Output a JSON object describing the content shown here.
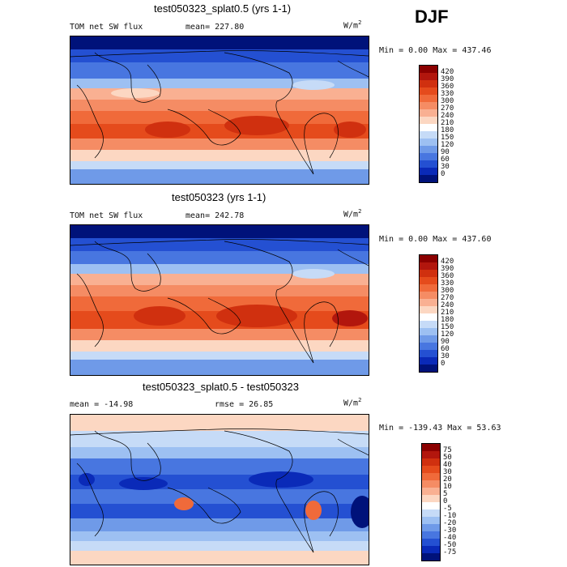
{
  "season": "DJF",
  "units_base": "W/m",
  "units_exp": "2",
  "panels": [
    {
      "title": "test050323_splat0.5 (yrs 1-1)",
      "left_text": "TOM net SW flux",
      "stat_text": "mean= 227.80",
      "minmax_text": "Min =    0.00 Max = 437.46",
      "scheme": "abs"
    },
    {
      "title": "test050323 (yrs 1-1)",
      "left_text": "TOM net SW flux",
      "stat_text": "mean= 242.78",
      "minmax_text": "Min =    0.00 Max = 437.60",
      "scheme": "abs"
    },
    {
      "title": "test050323_splat0.5 - test050323",
      "left_text": "mean = -14.98",
      "stat_text": "rmse =  26.85",
      "minmax_text": "Min = -139.43 Max =  53.63",
      "scheme": "diff"
    }
  ],
  "colorbars": {
    "abs": {
      "labels": [
        "420",
        "390",
        "360",
        "330",
        "300",
        "270",
        "240",
        "210",
        "180",
        "150",
        "120",
        "90",
        "60",
        "30",
        "0"
      ],
      "colors": [
        "#8b0000",
        "#b2160d",
        "#d0300f",
        "#e54b1c",
        "#f06a3a",
        "#f58c64",
        "#f9b092",
        "#fcd7c2",
        "#ffffff",
        "#c6dbf7",
        "#9dc0f2",
        "#6f9ae8",
        "#4876e0",
        "#2450d2",
        "#0a2ab8",
        "#00127a"
      ]
    },
    "diff": {
      "labels": [
        "75",
        "50",
        "40",
        "30",
        "20",
        "10",
        "5",
        "0",
        "-5",
        "-10",
        "-20",
        "-30",
        "-40",
        "-50",
        "-75"
      ],
      "colors": [
        "#8b0000",
        "#b2160d",
        "#d0300f",
        "#e54b1c",
        "#f06a3a",
        "#f58c64",
        "#f9b092",
        "#fcd7c2",
        "#ffffff",
        "#c6dbf7",
        "#9dc0f2",
        "#6f9ae8",
        "#4876e0",
        "#2450d2",
        "#0a2ab8",
        "#00127a"
      ]
    }
  }
}
